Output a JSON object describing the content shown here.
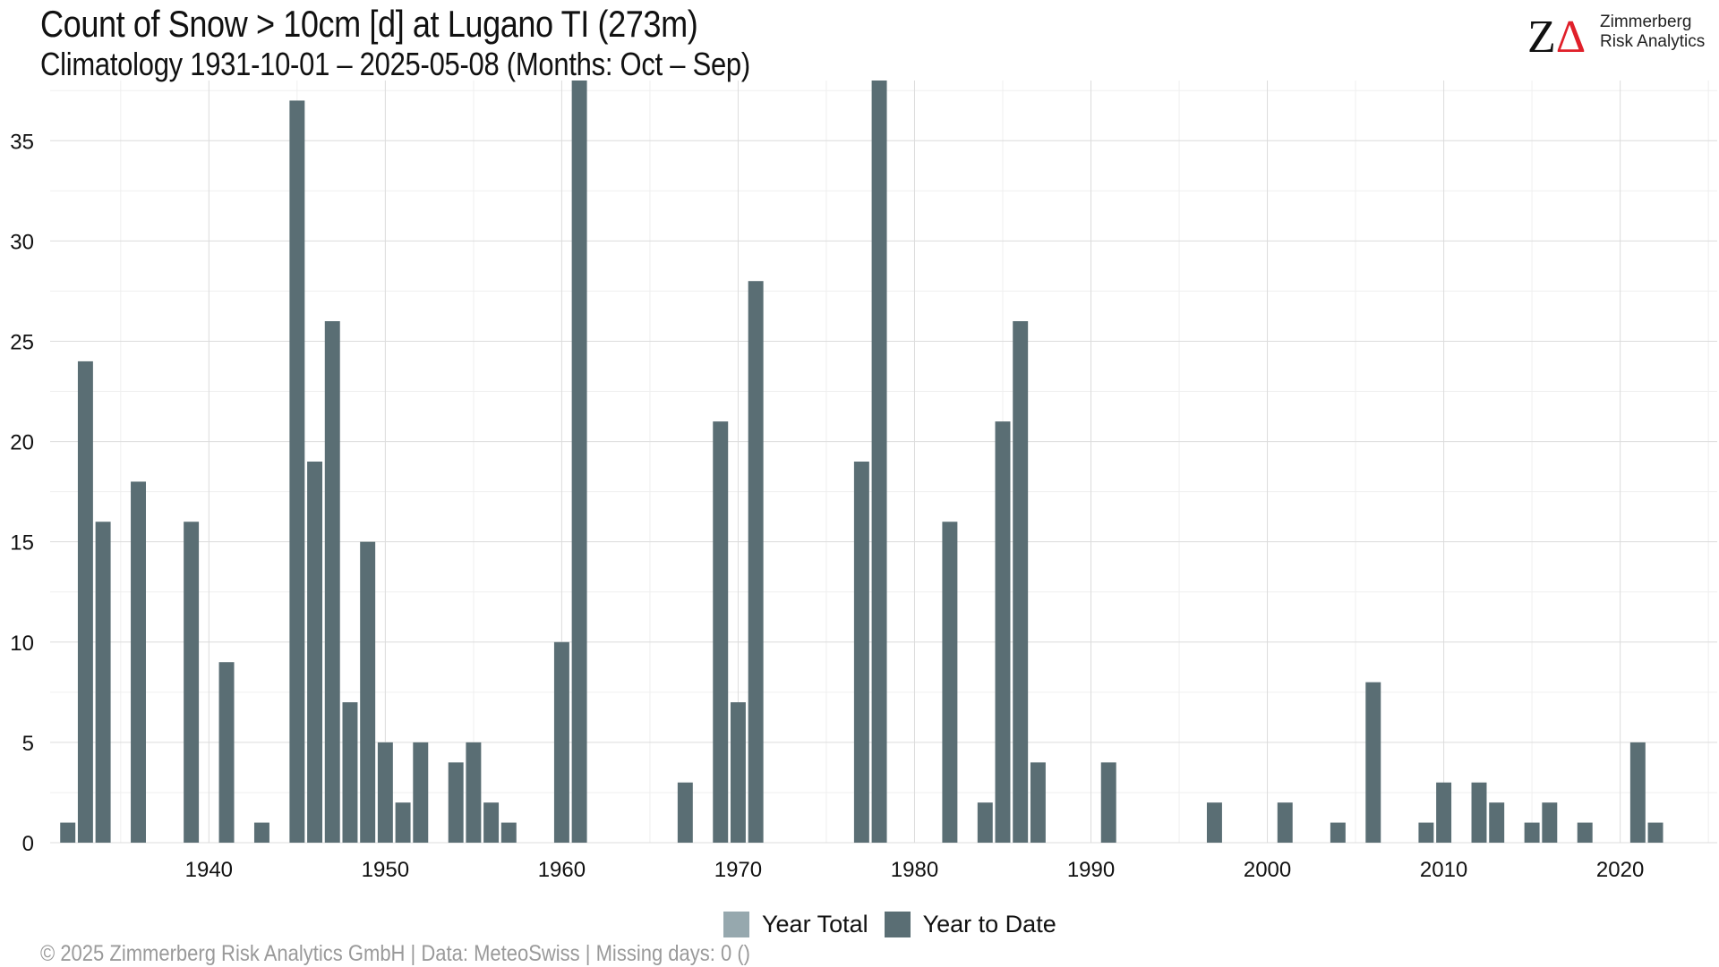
{
  "title": "Count of Snow > 10cm [d] at Lugano  TI (273m)",
  "subtitle": "Climatology 1931-10-01 – 2025-05-08 (Months: Oct – Sep)",
  "logo": {
    "letters": "ZΔ",
    "line1": "Zimmerberg",
    "line2": "Risk Analytics",
    "accent": "#e0202a"
  },
  "caption": "©  2025 Zimmerberg Risk Analytics GmbH | Data: MeteoSwiss | Missing days: 0 ()",
  "chart_data": {
    "type": "bar",
    "ylim": [
      0,
      38
    ],
    "xlim": [
      1931,
      2025.5
    ],
    "y_ticks": [
      0,
      5,
      10,
      15,
      20,
      25,
      30,
      35
    ],
    "x_ticks": [
      1940,
      1950,
      1960,
      1970,
      1980,
      1990,
      2000,
      2010,
      2020
    ],
    "grid": true,
    "legend_position": "bottom",
    "series": [
      {
        "name": "Year Total",
        "color": "#96a8ae",
        "x": [],
        "values": []
      },
      {
        "name": "Year to Date",
        "color": "#5a6e74",
        "x": [
          1932,
          1933,
          1934,
          1936,
          1939,
          1941,
          1943,
          1945,
          1946,
          1947,
          1948,
          1949,
          1950,
          1951,
          1952,
          1954,
          1955,
          1956,
          1957,
          1960,
          1961,
          1967,
          1969,
          1970,
          1971,
          1977,
          1978,
          1982,
          1984,
          1985,
          1986,
          1987,
          1991,
          1997,
          2001,
          2004,
          2006,
          2009,
          2010,
          2012,
          2013,
          2015,
          2016,
          2018,
          2021,
          2022
        ],
        "values": [
          1,
          24,
          16,
          18,
          16,
          9,
          1,
          37,
          19,
          26,
          7,
          15,
          5,
          2,
          5,
          4,
          5,
          2,
          1,
          10,
          38,
          3,
          21,
          7,
          28,
          19,
          38,
          16,
          2,
          21,
          26,
          4,
          4,
          2,
          2,
          1,
          8,
          1,
          3,
          3,
          2,
          1,
          2,
          1,
          5,
          1
        ]
      }
    ]
  }
}
